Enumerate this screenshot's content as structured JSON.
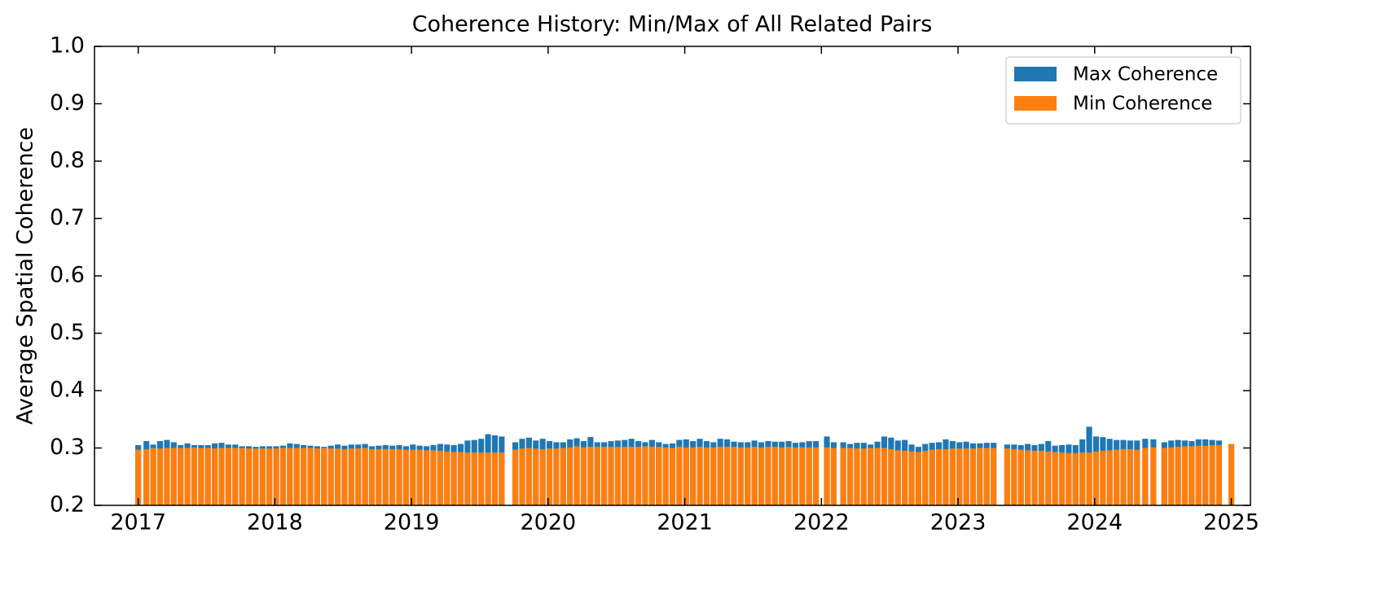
{
  "chart_data": {
    "type": "bar",
    "title": "Coherence History: Min/Max of All Related Pairs",
    "y_label": "Average Spatial Coherence",
    "xlim": [
      2016.68,
      2025.14
    ],
    "ylim": [
      0.2,
      1.0
    ],
    "xticks": [
      2017,
      2018,
      2019,
      2020,
      2021,
      2022,
      2023,
      2024,
      2025
    ],
    "yticks": [
      0.2,
      0.3,
      0.4,
      0.5,
      0.6,
      0.7,
      0.8,
      0.9,
      {
        "value": 1,
        "label": "1.0"
      }
    ],
    "legend": "upper right",
    "x": [
      2017.0,
      2017.06,
      2017.11,
      2017.16,
      2017.21,
      2017.26,
      2017.31,
      2017.36,
      2017.41,
      2017.46,
      2017.51,
      2017.56,
      2017.61,
      2017.66,
      2017.71,
      2017.76,
      2017.81,
      2017.86,
      2017.91,
      2017.96,
      2018.01,
      2018.06,
      2018.11,
      2018.16,
      2018.21,
      2018.26,
      2018.31,
      2018.36,
      2018.41,
      2018.46,
      2018.51,
      2018.56,
      2018.61,
      2018.66,
      2018.71,
      2018.76,
      2018.81,
      2018.86,
      2018.91,
      2018.96,
      2019.01,
      2019.06,
      2019.11,
      2019.16,
      2019.21,
      2019.26,
      2019.31,
      2019.36,
      2019.41,
      2019.46,
      2019.51,
      2019.56,
      2019.61,
      2019.66,
      2019.76,
      2019.81,
      2019.86,
      2019.91,
      2019.96,
      2020.01,
      2020.06,
      2020.11,
      2020.16,
      2020.21,
      2020.26,
      2020.31,
      2020.36,
      2020.41,
      2020.46,
      2020.51,
      2020.56,
      2020.61,
      2020.66,
      2020.71,
      2020.76,
      2020.81,
      2020.86,
      2020.91,
      2020.96,
      2021.01,
      2021.06,
      2021.11,
      2021.16,
      2021.21,
      2021.26,
      2021.31,
      2021.36,
      2021.41,
      2021.46,
      2021.51,
      2021.56,
      2021.61,
      2021.66,
      2021.71,
      2021.76,
      2021.81,
      2021.86,
      2021.91,
      2021.96,
      2022.04,
      2022.09,
      2022.16,
      2022.21,
      2022.26,
      2022.31,
      2022.36,
      2022.41,
      2022.46,
      2022.51,
      2022.56,
      2022.61,
      2022.66,
      2022.71,
      2022.76,
      2022.81,
      2022.86,
      2022.91,
      2022.96,
      2023.01,
      2023.06,
      2023.11,
      2023.16,
      2023.21,
      2023.26,
      2023.36,
      2023.41,
      2023.46,
      2023.51,
      2023.56,
      2023.61,
      2023.66,
      2023.71,
      2023.76,
      2023.81,
      2023.86,
      2023.91,
      2023.96,
      2024.01,
      2024.06,
      2024.11,
      2024.16,
      2024.21,
      2024.26,
      2024.31,
      2024.37,
      2024.43,
      2024.51,
      2024.56,
      2024.61,
      2024.66,
      2024.71,
      2024.76,
      2024.81,
      2024.86,
      2024.91,
      2025.0
    ],
    "series": [
      {
        "name": "Max Coherence",
        "color": "#1f77b4",
        "values": [
          0.305,
          0.312,
          0.306,
          0.312,
          0.314,
          0.31,
          0.305,
          0.308,
          0.305,
          0.305,
          0.305,
          0.308,
          0.309,
          0.306,
          0.306,
          0.303,
          0.303,
          0.302,
          0.303,
          0.303,
          0.303,
          0.304,
          0.308,
          0.307,
          0.305,
          0.304,
          0.303,
          0.302,
          0.304,
          0.306,
          0.304,
          0.306,
          0.306,
          0.307,
          0.303,
          0.304,
          0.305,
          0.304,
          0.305,
          0.303,
          0.306,
          0.304,
          0.303,
          0.305,
          0.307,
          0.306,
          0.305,
          0.307,
          0.313,
          0.314,
          0.316,
          0.324,
          0.322,
          0.32,
          0.31,
          0.316,
          0.318,
          0.313,
          0.316,
          0.312,
          0.31,
          0.31,
          0.315,
          0.317,
          0.312,
          0.319,
          0.31,
          0.31,
          0.312,
          0.313,
          0.314,
          0.316,
          0.312,
          0.31,
          0.314,
          0.31,
          0.307,
          0.308,
          0.314,
          0.315,
          0.312,
          0.316,
          0.312,
          0.31,
          0.316,
          0.315,
          0.311,
          0.31,
          0.31,
          0.313,
          0.31,
          0.312,
          0.311,
          0.311,
          0.312,
          0.309,
          0.31,
          0.312,
          0.312,
          0.32,
          0.31,
          0.31,
          0.307,
          0.309,
          0.309,
          0.306,
          0.311,
          0.32,
          0.318,
          0.313,
          0.314,
          0.306,
          0.302,
          0.307,
          0.309,
          0.31,
          0.315,
          0.312,
          0.31,
          0.311,
          0.308,
          0.308,
          0.309,
          0.309,
          0.306,
          0.306,
          0.305,
          0.307,
          0.305,
          0.307,
          0.312,
          0.304,
          0.305,
          0.306,
          0.305,
          0.315,
          0.337,
          0.32,
          0.319,
          0.316,
          0.314,
          0.314,
          0.313,
          0.313,
          0.316,
          0.315,
          0.31,
          0.313,
          0.314,
          0.313,
          0.312,
          0.315,
          0.315,
          0.314,
          0.313,
          0.307
        ]
      },
      {
        "name": "Min Coherence",
        "color": "#ff7f0e",
        "values": [
          0.297,
          0.298,
          0.3,
          0.299,
          0.3,
          0.3,
          0.3,
          0.3,
          0.301,
          0.3,
          0.3,
          0.299,
          0.3,
          0.3,
          0.3,
          0.3,
          0.299,
          0.299,
          0.299,
          0.299,
          0.299,
          0.3,
          0.3,
          0.3,
          0.3,
          0.3,
          0.299,
          0.3,
          0.299,
          0.299,
          0.298,
          0.299,
          0.299,
          0.3,
          0.298,
          0.298,
          0.298,
          0.298,
          0.298,
          0.297,
          0.297,
          0.297,
          0.296,
          0.296,
          0.295,
          0.294,
          0.293,
          0.293,
          0.292,
          0.292,
          0.292,
          0.292,
          0.292,
          0.292,
          0.297,
          0.299,
          0.3,
          0.299,
          0.298,
          0.299,
          0.299,
          0.3,
          0.301,
          0.303,
          0.301,
          0.302,
          0.302,
          0.302,
          0.302,
          0.302,
          0.302,
          0.302,
          0.302,
          0.303,
          0.302,
          0.302,
          0.301,
          0.3,
          0.302,
          0.301,
          0.301,
          0.302,
          0.301,
          0.301,
          0.302,
          0.302,
          0.302,
          0.301,
          0.301,
          0.302,
          0.301,
          0.302,
          0.302,
          0.301,
          0.302,
          0.301,
          0.301,
          0.301,
          0.301,
          0.301,
          0.3,
          0.3,
          0.3,
          0.299,
          0.299,
          0.3,
          0.3,
          0.3,
          0.298,
          0.296,
          0.295,
          0.294,
          0.293,
          0.295,
          0.297,
          0.298,
          0.298,
          0.299,
          0.299,
          0.299,
          0.299,
          0.3,
          0.3,
          0.3,
          0.299,
          0.298,
          0.297,
          0.296,
          0.295,
          0.295,
          0.294,
          0.293,
          0.292,
          0.291,
          0.291,
          0.292,
          0.292,
          0.294,
          0.295,
          0.296,
          0.297,
          0.298,
          0.298,
          0.297,
          0.3,
          0.301,
          0.3,
          0.301,
          0.302,
          0.303,
          0.303,
          0.304,
          0.304,
          0.305,
          0.305,
          0.307
        ]
      }
    ]
  }
}
